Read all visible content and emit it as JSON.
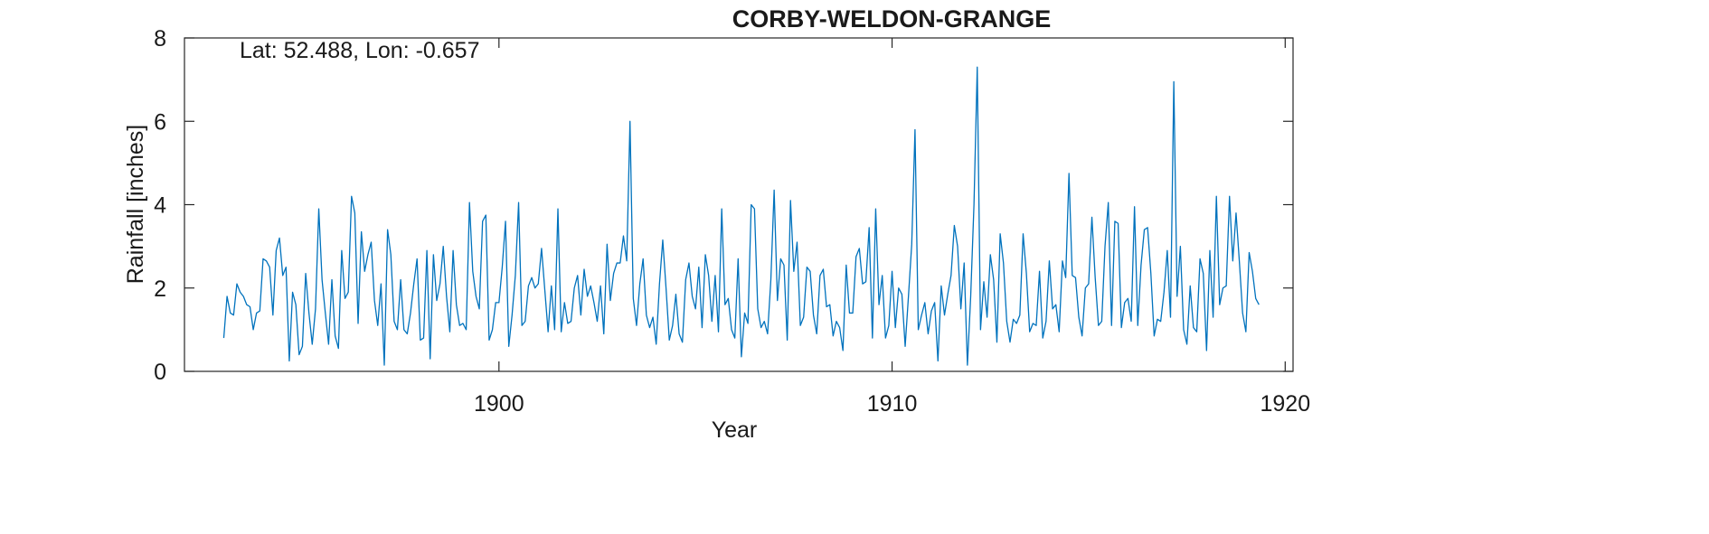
{
  "chart_data": {
    "type": "line",
    "title": "CORBY-WELDON-GRANGE",
    "annotation": "Lat: 52.488, Lon: -0.657",
    "xlabel": "Year",
    "ylabel": "Rainfall [inches]",
    "xlim": [
      1892,
      1920.2
    ],
    "ylim": [
      0,
      8
    ],
    "x_ticks": [
      1900,
      1910,
      1920
    ],
    "y_ticks": [
      0,
      2,
      4,
      6,
      8
    ],
    "x_tick_labels": [
      "1900",
      "1910",
      "1920"
    ],
    "y_tick_labels": [
      "0",
      "2",
      "4",
      "6",
      "8"
    ],
    "grid": false,
    "line_color": "#0072BD",
    "series": [
      {
        "start_year": 1893,
        "step": "monthly",
        "values": [
          0.8,
          1.8,
          1.4,
          1.35,
          2.1,
          1.9,
          1.8,
          1.6,
          1.55,
          1.0,
          1.4,
          1.45,
          2.7,
          2.65,
          2.5,
          1.35,
          2.9,
          3.2,
          2.3,
          2.5,
          0.25,
          1.9,
          1.6,
          0.4,
          0.6,
          2.35,
          1.4,
          0.65,
          1.5,
          3.9,
          2.2,
          1.4,
          0.65,
          2.2,
          0.85,
          0.55,
          2.9,
          1.75,
          1.9,
          4.2,
          3.8,
          1.15,
          3.35,
          2.4,
          2.8,
          3.1,
          1.7,
          1.1,
          2.1,
          0.15,
          3.4,
          2.8,
          1.2,
          1.0,
          2.2,
          1.0,
          0.9,
          1.4,
          2.1,
          2.7,
          0.75,
          0.8,
          2.9,
          0.3,
          2.8,
          1.7,
          2.1,
          3.0,
          1.8,
          0.95,
          2.9,
          1.6,
          1.1,
          1.15,
          1.0,
          4.05,
          2.4,
          1.8,
          1.5,
          3.6,
          3.75,
          0.75,
          1.0,
          1.65,
          1.65,
          2.5,
          3.6,
          0.6,
          1.35,
          2.3,
          4.05,
          1.1,
          1.2,
          2.05,
          2.25,
          2.0,
          2.1,
          2.95,
          1.95,
          0.95,
          2.05,
          1.0,
          3.9,
          0.95,
          1.65,
          1.15,
          1.2,
          2.0,
          2.3,
          1.35,
          2.45,
          1.8,
          2.05,
          1.65,
          1.2,
          2.05,
          0.9,
          3.05,
          1.7,
          2.35,
          2.6,
          2.6,
          3.25,
          2.65,
          6.0,
          1.75,
          1.1,
          2.1,
          2.7,
          1.35,
          1.05,
          1.3,
          0.65,
          2.1,
          3.15,
          2.0,
          0.75,
          1.1,
          1.85,
          0.9,
          0.7,
          2.2,
          2.6,
          1.8,
          1.5,
          2.5,
          1.05,
          2.8,
          2.3,
          1.2,
          2.3,
          0.95,
          3.9,
          1.6,
          1.75,
          1.0,
          0.8,
          2.7,
          0.35,
          1.4,
          1.15,
          4.0,
          3.9,
          1.5,
          1.05,
          1.2,
          0.9,
          2.2,
          4.35,
          1.7,
          2.7,
          2.55,
          0.75,
          4.1,
          2.4,
          3.1,
          1.1,
          1.3,
          2.5,
          2.4,
          1.35,
          0.9,
          2.3,
          2.45,
          1.55,
          1.6,
          0.85,
          1.2,
          1.05,
          0.5,
          2.55,
          1.4,
          1.4,
          2.75,
          2.95,
          2.1,
          2.15,
          3.45,
          0.8,
          3.9,
          1.6,
          2.3,
          0.8,
          1.1,
          2.4,
          1.05,
          2.0,
          1.85,
          0.6,
          1.8,
          3.05,
          5.8,
          1.0,
          1.35,
          1.65,
          0.9,
          1.45,
          1.65,
          0.25,
          2.05,
          1.35,
          1.85,
          2.3,
          3.5,
          3.0,
          1.5,
          2.6,
          0.15,
          1.8,
          4.0,
          7.3,
          1.0,
          2.15,
          1.3,
          2.8,
          2.2,
          0.7,
          3.3,
          2.6,
          1.2,
          0.7,
          1.25,
          1.15,
          1.35,
          3.3,
          2.35,
          0.95,
          1.15,
          1.1,
          2.4,
          0.8,
          1.2,
          2.65,
          1.5,
          1.6,
          0.95,
          2.65,
          2.25,
          4.75,
          2.3,
          2.25,
          1.3,
          0.85,
          2.0,
          2.1,
          3.7,
          2.25,
          1.1,
          1.2,
          3.0,
          4.05,
          1.1,
          3.6,
          3.55,
          1.05,
          1.65,
          1.75,
          1.2,
          3.95,
          1.1,
          2.55,
          3.4,
          3.45,
          2.35,
          0.85,
          1.25,
          1.2,
          1.9,
          2.9,
          1.3,
          6.95,
          1.8,
          3.0,
          1.0,
          0.65,
          2.05,
          1.05,
          0.95,
          2.7,
          2.35,
          0.5,
          2.9,
          1.3,
          4.2,
          1.6,
          2.0,
          2.05,
          4.2,
          2.65,
          3.8,
          2.65,
          1.4,
          0.95,
          2.85,
          2.4,
          1.75,
          1.6
        ]
      }
    ]
  }
}
